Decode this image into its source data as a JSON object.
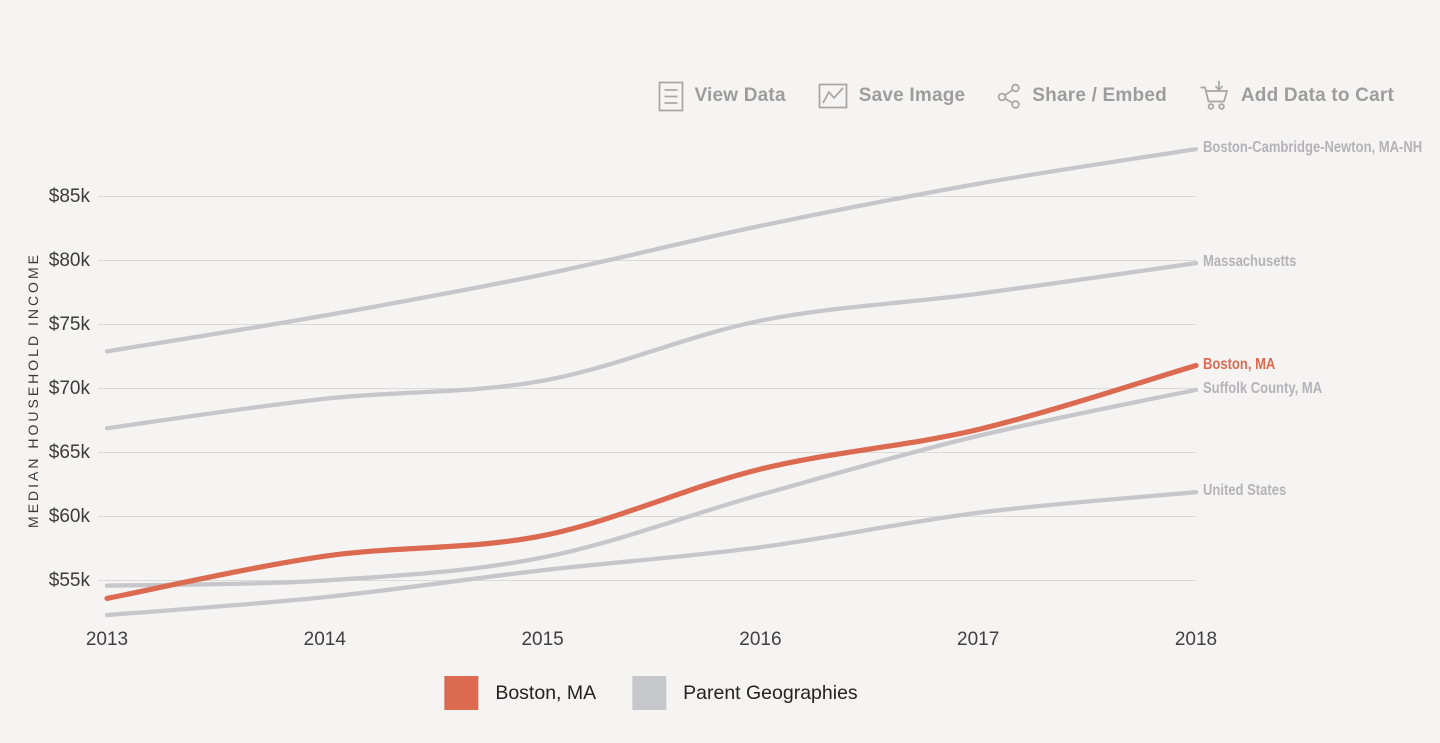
{
  "toolbar": {
    "items": [
      {
        "label": "View Data",
        "icon": "view-data-icon"
      },
      {
        "label": "Save Image",
        "icon": "save-image-icon"
      },
      {
        "label": "Share / Embed",
        "icon": "share-embed-icon"
      },
      {
        "label": "Add Data to Cart",
        "icon": "add-to-cart-icon"
      }
    ]
  },
  "chart_data": {
    "type": "line",
    "ylabel": "MEDIAN HOUSEHOLD INCOME",
    "xlabel": "",
    "x": [
      2013,
      2014,
      2015,
      2016,
      2017,
      2018
    ],
    "x_tick_labels": [
      "2013",
      "2014",
      "2015",
      "2016",
      "2017",
      "2018"
    ],
    "y_ticks": [
      {
        "value": 55000,
        "label": "$55k"
      },
      {
        "value": 60000,
        "label": "$60k"
      },
      {
        "value": 65000,
        "label": "$65k"
      },
      {
        "value": 70000,
        "label": "$70k"
      },
      {
        "value": 75000,
        "label": "$75k"
      },
      {
        "value": 80000,
        "label": "$80k"
      },
      {
        "value": 85000,
        "label": "$85k"
      }
    ],
    "ylim": [
      52000,
      89000
    ],
    "grid": true,
    "legend_position": "bottom",
    "series": [
      {
        "name": "Boston, MA",
        "group": "primary",
        "color": "#db6a50",
        "values": [
          53600,
          56900,
          58500,
          63700,
          66800,
          71800
        ]
      },
      {
        "name": "Boston-Cambridge-Newton, MA-NH",
        "group": "parent",
        "color": "#c6c6cb",
        "values": [
          72900,
          75700,
          78900,
          82700,
          86000,
          88700
        ]
      },
      {
        "name": "Massachusetts",
        "group": "parent",
        "color": "#c6c6cb",
        "values": [
          66900,
          69200,
          70600,
          75300,
          77400,
          79800
        ]
      },
      {
        "name": "Suffolk County, MA",
        "group": "parent",
        "color": "#c6c6cb",
        "values": [
          54600,
          55000,
          56800,
          61700,
          66300,
          69900
        ]
      },
      {
        "name": "United States",
        "group": "parent",
        "color": "#c6c6cb",
        "values": [
          52300,
          53700,
          55800,
          57600,
          60300,
          61900
        ]
      }
    ],
    "legend": [
      {
        "label": "Boston, MA",
        "color": "#db6a50"
      },
      {
        "label": "Parent Geographies",
        "color": "#c6c7ca"
      }
    ]
  },
  "colors": {
    "background": "#f5f4f2",
    "accent": "#db6a50",
    "parent_line": "#c6c6cb",
    "gridline": "#dad9d6",
    "tick_text": "#3b3b3b",
    "muted_label": "#b3b3b8",
    "toolbar_text": "#9d9d9d"
  }
}
